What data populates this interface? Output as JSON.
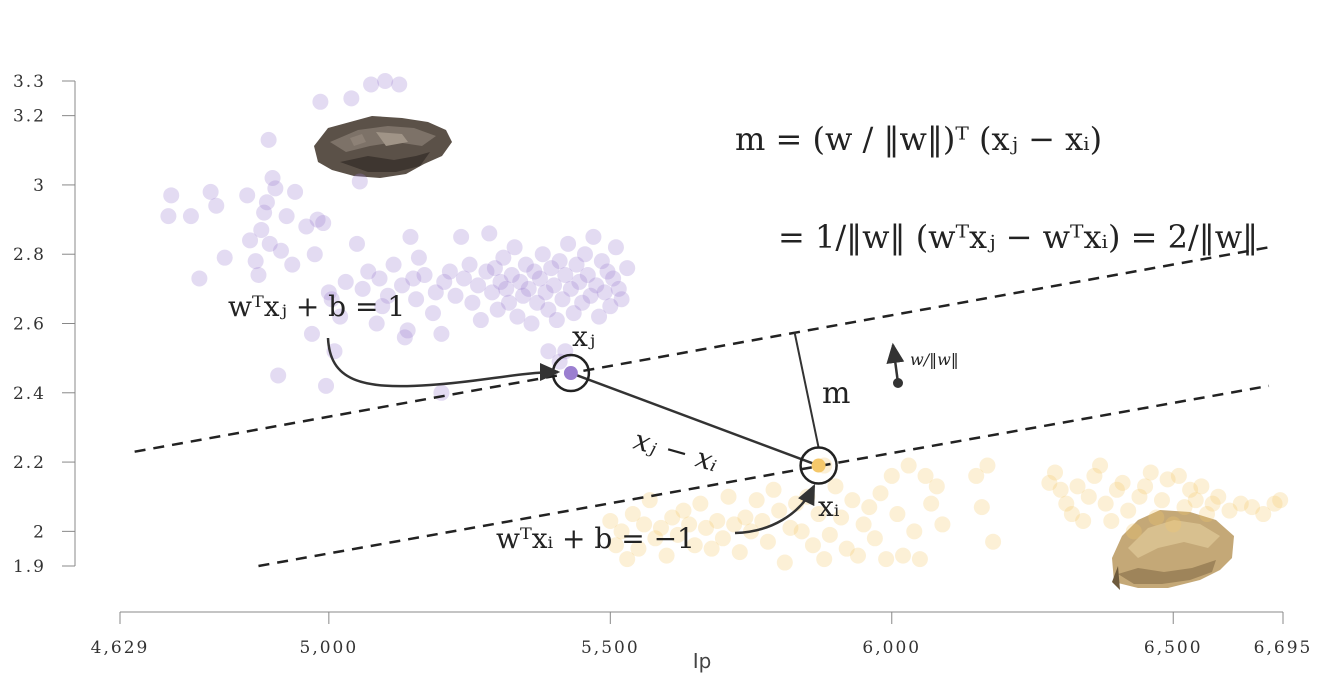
{
  "chart_data": {
    "type": "scatter",
    "xlabel": "Ip",
    "ylabel": "",
    "xlim": [
      4629,
      6695
    ],
    "ylim": [
      1.9,
      3.3
    ],
    "xticks": [
      "4,629",
      "5,000",
      "5,500",
      "6,000",
      "6,500",
      "6,695"
    ],
    "xtick_values": [
      4629,
      5000,
      5500,
      6000,
      6500,
      6695
    ],
    "yticks": [
      "1.9",
      "2",
      "2.2",
      "2.4",
      "2.6",
      "2.8",
      "3",
      "3.2",
      "3.3"
    ],
    "ytick_values": [
      1.9,
      2.0,
      2.2,
      2.4,
      2.6,
      2.8,
      3.0,
      3.2,
      3.3
    ],
    "grid": false,
    "colors": {
      "class_a": "#9b7fd0",
      "class_b": "#f5c86a",
      "line": "#222222"
    },
    "series": [
      {
        "color": "#9b7fd0",
        "points": [
          [
            4715,
            2.91
          ],
          [
            4720,
            2.97
          ],
          [
            4755,
            2.91
          ],
          [
            4770,
            2.73
          ],
          [
            4790,
            2.98
          ],
          [
            4800,
            2.94
          ],
          [
            4815,
            2.79
          ],
          [
            4855,
            2.97
          ],
          [
            4860,
            2.84
          ],
          [
            4870,
            2.78
          ],
          [
            4875,
            2.74
          ],
          [
            4880,
            2.87
          ],
          [
            4885,
            2.92
          ],
          [
            4890,
            2.95
          ],
          [
            4893,
            3.13
          ],
          [
            4895,
            2.83
          ],
          [
            4900,
            3.02
          ],
          [
            4905,
            2.99
          ],
          [
            4910,
            2.45
          ],
          [
            4915,
            2.81
          ],
          [
            4925,
            2.91
          ],
          [
            4935,
            2.77
          ],
          [
            4940,
            2.98
          ],
          [
            4960,
            2.88
          ],
          [
            4970,
            2.57
          ],
          [
            4975,
            2.8
          ],
          [
            4980,
            2.9
          ],
          [
            4985,
            3.24
          ],
          [
            4990,
            2.89
          ],
          [
            4995,
            2.42
          ],
          [
            5000,
            2.69
          ],
          [
            5005,
            2.67
          ],
          [
            5010,
            2.52
          ],
          [
            5020,
            2.62
          ],
          [
            5030,
            2.72
          ],
          [
            5040,
            3.25
          ],
          [
            5050,
            2.83
          ],
          [
            5055,
            3.01
          ],
          [
            5060,
            2.7
          ],
          [
            5070,
            2.75
          ],
          [
            5075,
            3.29
          ],
          [
            5085,
            2.6
          ],
          [
            5090,
            2.73
          ],
          [
            5095,
            2.65
          ],
          [
            5100,
            3.3
          ],
          [
            5105,
            2.68
          ],
          [
            5115,
            2.77
          ],
          [
            5125,
            3.29
          ],
          [
            5130,
            2.71
          ],
          [
            5135,
            2.56
          ],
          [
            5140,
            2.58
          ],
          [
            5145,
            2.85
          ],
          [
            5150,
            2.73
          ],
          [
            5155,
            2.67
          ],
          [
            5160,
            2.79
          ],
          [
            5170,
            2.74
          ],
          [
            5185,
            2.63
          ],
          [
            5190,
            2.69
          ],
          [
            5200,
            2.4
          ],
          [
            5205,
            2.72
          ],
          [
            5215,
            2.75
          ],
          [
            5225,
            2.68
          ],
          [
            5235,
            2.85
          ],
          [
            5240,
            2.73
          ],
          [
            5250,
            2.77
          ],
          [
            5255,
            2.66
          ],
          [
            5265,
            2.71
          ],
          [
            5270,
            2.61
          ],
          [
            5280,
            2.75
          ],
          [
            5285,
            2.86
          ],
          [
            5290,
            2.69
          ],
          [
            5295,
            2.76
          ],
          [
            5300,
            2.64
          ],
          [
            5305,
            2.72
          ],
          [
            5310,
            2.79
          ],
          [
            5315,
            2.7
          ],
          [
            5320,
            2.66
          ],
          [
            5325,
            2.74
          ],
          [
            5330,
            2.82
          ],
          [
            5335,
            2.62
          ],
          [
            5340,
            2.72
          ],
          [
            5345,
            2.68
          ],
          [
            5350,
            2.77
          ],
          [
            5355,
            2.7
          ],
          [
            5360,
            2.6
          ],
          [
            5365,
            2.75
          ],
          [
            5370,
            2.66
          ],
          [
            5375,
            2.73
          ],
          [
            5380,
            2.8
          ],
          [
            5385,
            2.69
          ],
          [
            5390,
            2.64
          ],
          [
            5395,
            2.76
          ],
          [
            5400,
            2.71
          ],
          [
            5405,
            2.61
          ],
          [
            5410,
            2.78
          ],
          [
            5415,
            2.67
          ],
          [
            5420,
            2.74
          ],
          [
            5425,
            2.83
          ],
          [
            5430,
            2.7
          ],
          [
            5435,
            2.63
          ],
          [
            5440,
            2.77
          ],
          [
            5445,
            2.72
          ],
          [
            5450,
            2.66
          ],
          [
            5455,
            2.8
          ],
          [
            5460,
            2.74
          ],
          [
            5465,
            2.68
          ],
          [
            5470,
            2.85
          ],
          [
            5475,
            2.71
          ],
          [
            5480,
            2.62
          ],
          [
            5485,
            2.78
          ],
          [
            5490,
            2.69
          ],
          [
            5495,
            2.75
          ],
          [
            5500,
            2.65
          ],
          [
            5505,
            2.73
          ],
          [
            5510,
            2.82
          ],
          [
            5515,
            2.7
          ],
          [
            5520,
            2.67
          ],
          [
            5530,
            2.76
          ],
          [
            5420,
            2.52
          ],
          [
            5410,
            2.49
          ],
          [
            5390,
            2.52
          ],
          [
            5200,
            2.57
          ]
        ]
      },
      {
        "color": "#f5c86a",
        "points": [
          [
            5500,
            2.03
          ],
          [
            5510,
            1.96
          ],
          [
            5520,
            2.0
          ],
          [
            5530,
            1.92
          ],
          [
            5540,
            2.05
          ],
          [
            5550,
            1.95
          ],
          [
            5560,
            2.02
          ],
          [
            5570,
            2.09
          ],
          [
            5580,
            1.98
          ],
          [
            5590,
            2.01
          ],
          [
            5600,
            1.93
          ],
          [
            5610,
            2.04
          ],
          [
            5620,
            1.99
          ],
          [
            5630,
            2.06
          ],
          [
            5640,
            2.02
          ],
          [
            5650,
            1.96
          ],
          [
            5660,
            2.08
          ],
          [
            5670,
            2.01
          ],
          [
            5680,
            1.95
          ],
          [
            5690,
            2.03
          ],
          [
            5700,
            1.98
          ],
          [
            5710,
            2.1
          ],
          [
            5720,
            2.02
          ],
          [
            5730,
            1.94
          ],
          [
            5740,
            2.04
          ],
          [
            5750,
            2.0
          ],
          [
            5760,
            2.09
          ],
          [
            5770,
            2.03
          ],
          [
            5780,
            1.97
          ],
          [
            5790,
            2.12
          ],
          [
            5800,
            2.06
          ],
          [
            5810,
            1.91
          ],
          [
            5820,
            2.01
          ],
          [
            5830,
            2.08
          ],
          [
            5840,
            2.0
          ],
          [
            5850,
            2.1
          ],
          [
            5860,
            1.96
          ],
          [
            5870,
            2.05
          ],
          [
            5880,
            1.92
          ],
          [
            5890,
            1.99
          ],
          [
            5900,
            2.13
          ],
          [
            5910,
            2.04
          ],
          [
            5920,
            1.95
          ],
          [
            5930,
            2.09
          ],
          [
            5940,
            1.93
          ],
          [
            5950,
            2.02
          ],
          [
            5960,
            2.07
          ],
          [
            5970,
            1.98
          ],
          [
            5980,
            2.11
          ],
          [
            5990,
            1.92
          ],
          [
            6000,
            2.16
          ],
          [
            6010,
            2.05
          ],
          [
            6020,
            1.93
          ],
          [
            6030,
            2.19
          ],
          [
            6040,
            2.0
          ],
          [
            6050,
            1.92
          ],
          [
            6060,
            2.16
          ],
          [
            6070,
            2.08
          ],
          [
            6080,
            2.13
          ],
          [
            6090,
            2.02
          ],
          [
            6150,
            2.16
          ],
          [
            6160,
            2.07
          ],
          [
            6170,
            2.19
          ],
          [
            6180,
            1.97
          ],
          [
            6280,
            2.14
          ],
          [
            6290,
            2.17
          ],
          [
            6300,
            2.12
          ],
          [
            6310,
            2.08
          ],
          [
            6320,
            2.05
          ],
          [
            6330,
            2.13
          ],
          [
            6340,
            2.03
          ],
          [
            6350,
            2.1
          ],
          [
            6360,
            2.16
          ],
          [
            6370,
            2.19
          ],
          [
            6380,
            2.08
          ],
          [
            6390,
            2.03
          ],
          [
            6400,
            2.12
          ],
          [
            6410,
            2.14
          ],
          [
            6420,
            2.06
          ],
          [
            6430,
            2.0
          ],
          [
            6440,
            2.1
          ],
          [
            6450,
            2.13
          ],
          [
            6460,
            2.17
          ],
          [
            6470,
            2.04
          ],
          [
            6480,
            2.09
          ],
          [
            6490,
            2.15
          ],
          [
            6500,
            2.02
          ],
          [
            6510,
            2.16
          ],
          [
            6520,
            2.07
          ],
          [
            6530,
            2.12
          ],
          [
            6540,
            2.09
          ],
          [
            6550,
            2.13
          ],
          [
            6560,
            2.05
          ],
          [
            6570,
            2.08
          ],
          [
            6580,
            2.1
          ],
          [
            6600,
            2.06
          ],
          [
            6620,
            2.08
          ],
          [
            6640,
            2.07
          ],
          [
            6660,
            2.05
          ],
          [
            6680,
            2.08
          ],
          [
            6690,
            2.09
          ],
          [
            5880,
            2.19
          ]
        ]
      }
    ],
    "highlight_points": [
      {
        "id": "xj",
        "x": 5430,
        "y": 2.457,
        "color": "#9b7fd0"
      },
      {
        "id": "xi",
        "x": 5870,
        "y": 2.19,
        "color": "#f5c86a"
      }
    ],
    "margin_lines": [
      {
        "id": "upper",
        "from": [
          4655,
          2.23
        ],
        "to": [
          6670,
          2.82
        ],
        "style": "dashed"
      },
      {
        "id": "lower",
        "from": [
          4875,
          1.9
        ],
        "to": [
          6670,
          2.42
        ],
        "style": "dashed"
      }
    ],
    "annotations": {
      "upper_line_label": "wᵀxⱼ + b = 1",
      "lower_line_label": "wᵀxᵢ + b = −1",
      "xj_label": "xⱼ",
      "xi_label": "xᵢ",
      "diff_label": "xⱼ − xᵢ",
      "margin_label": "m",
      "w_dir_label": "w/‖w‖",
      "eq_line1": "m = (w / ‖w‖)ᵀ (xⱼ − xᵢ)",
      "eq_line2": "= 1/‖w‖ (wᵀxⱼ − wᵀxᵢ) = 2/‖w‖"
    }
  }
}
